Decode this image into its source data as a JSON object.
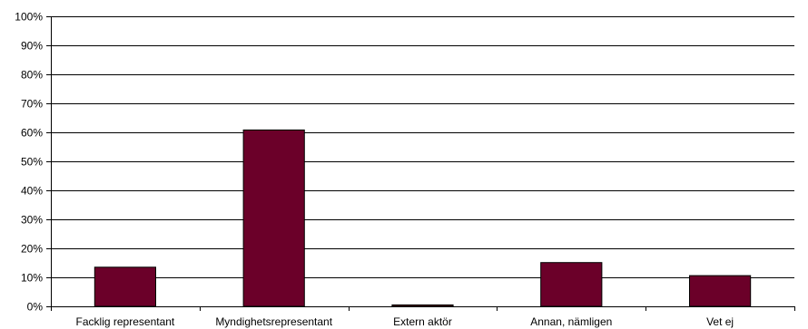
{
  "chart_data": {
    "type": "bar",
    "title": "",
    "xlabel": "",
    "ylabel": "",
    "categories": [
      "Facklig representant",
      "Myndighetsrepresentant",
      "Extern aktör",
      "Annan, nämligen",
      "Vet ej"
    ],
    "values": [
      13.5,
      60.8,
      0.5,
      15.1,
      10.6
    ],
    "ylim": [
      0,
      100
    ],
    "yticks": [
      "0%",
      "10%",
      "20%",
      "30%",
      "40%",
      "50%",
      "60%",
      "70%",
      "80%",
      "90%",
      "100%"
    ],
    "grid": true,
    "legend": "none",
    "colors": {
      "bar_fill": "#6b0029",
      "bar_stroke": "#000000",
      "grid": "#000000",
      "axis": "#000000"
    }
  }
}
